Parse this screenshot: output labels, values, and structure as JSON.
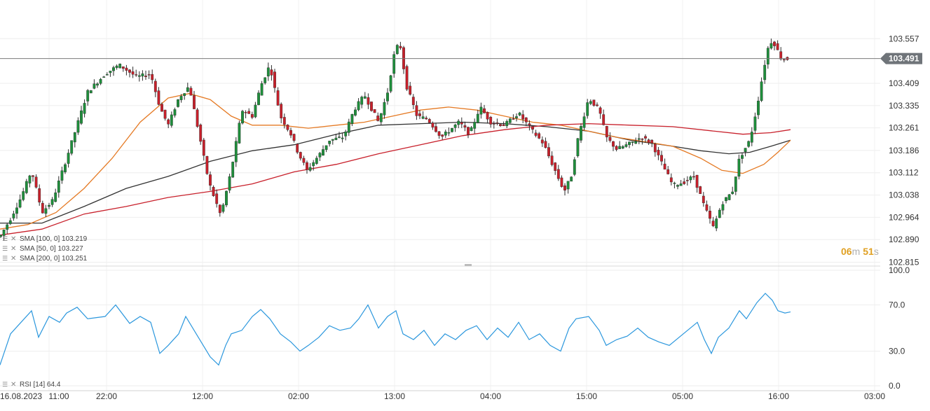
{
  "chart_data": [
    {
      "type": "candlestick",
      "panel": "price",
      "x_ticks": [
        "16.08.2023",
        "11:00",
        "22:00",
        "12:00",
        "02:00",
        "13:00",
        "04:00",
        "15:00",
        "05:00",
        "16:00",
        "03:00"
      ],
      "y_ticks": [
        103.557,
        103.409,
        103.335,
        103.261,
        103.186,
        103.112,
        103.038,
        102.964,
        102.89,
        102.815
      ],
      "ylim": [
        102.815,
        103.6
      ],
      "current_price": "103.491",
      "current_price_value": 103.491,
      "countdown": {
        "minutes": "06",
        "m_unit": "m",
        "seconds": "51",
        "s_unit": "s"
      },
      "grid": true,
      "colors": {
        "up": "#1e8f3b",
        "down": "#c8202b",
        "sma100": "#333333",
        "sma50": "#e57a24",
        "sma200": "#c8202b",
        "price_line": "#7a7a7a",
        "price_tag": "#6f7479"
      },
      "price_path": [
        [
          0,
          102.9
        ],
        [
          15,
          102.96
        ],
        [
          30,
          103.03
        ],
        [
          45,
          103.12
        ],
        [
          60,
          102.98
        ],
        [
          75,
          103.02
        ],
        [
          95,
          103.16
        ],
        [
          110,
          103.27
        ],
        [
          125,
          103.38
        ],
        [
          150,
          103.44
        ],
        [
          170,
          103.47
        ],
        [
          195,
          103.43
        ],
        [
          215,
          103.44
        ],
        [
          228,
          103.33
        ],
        [
          240,
          103.27
        ],
        [
          255,
          103.36
        ],
        [
          270,
          103.4
        ],
        [
          285,
          103.23
        ],
        [
          298,
          103.08
        ],
        [
          315,
          102.97
        ],
        [
          330,
          103.12
        ],
        [
          345,
          103.32
        ],
        [
          360,
          103.3
        ],
        [
          372,
          103.4
        ],
        [
          385,
          103.47
        ],
        [
          400,
          103.3
        ],
        [
          415,
          103.24
        ],
        [
          425,
          103.18
        ],
        [
          438,
          103.12
        ],
        [
          455,
          103.17
        ],
        [
          470,
          103.22
        ],
        [
          490,
          103.23
        ],
        [
          505,
          103.32
        ],
        [
          520,
          103.37
        ],
        [
          540,
          103.28
        ],
        [
          553,
          103.38
        ],
        [
          562,
          103.5
        ],
        [
          570,
          103.55
        ],
        [
          580,
          103.4
        ],
        [
          595,
          103.3
        ],
        [
          610,
          103.29
        ],
        [
          630,
          103.23
        ],
        [
          655,
          103.28
        ],
        [
          670,
          103.24
        ],
        [
          685,
          103.33
        ],
        [
          700,
          103.28
        ],
        [
          720,
          103.27
        ],
        [
          740,
          103.31
        ],
        [
          760,
          103.25
        ],
        [
          775,
          103.21
        ],
        [
          790,
          103.13
        ],
        [
          805,
          103.05
        ],
        [
          815,
          103.1
        ],
        [
          825,
          103.23
        ],
        [
          840,
          103.36
        ],
        [
          855,
          103.32
        ],
        [
          865,
          103.23
        ],
        [
          880,
          103.19
        ],
        [
          900,
          103.21
        ],
        [
          915,
          103.23
        ],
        [
          930,
          103.21
        ],
        [
          945,
          103.14
        ],
        [
          960,
          103.07
        ],
        [
          975,
          103.08
        ],
        [
          990,
          103.1
        ],
        [
          1005,
          103.0
        ],
        [
          1018,
          102.93
        ],
        [
          1030,
          103.01
        ],
        [
          1045,
          103.05
        ],
        [
          1055,
          103.16
        ],
        [
          1070,
          103.22
        ],
        [
          1080,
          103.33
        ],
        [
          1090,
          103.46
        ],
        [
          1098,
          103.55
        ],
        [
          1105,
          103.54
        ],
        [
          1115,
          103.49
        ],
        [
          1128,
          103.49
        ]
      ],
      "series": [
        {
          "name": "SMA",
          "params": "[100, 0]",
          "value": "103.219",
          "points": [
            [
              0,
              102.945
            ],
            [
              60,
              102.945
            ],
            [
              120,
              103.0
            ],
            [
              180,
              103.06
            ],
            [
              240,
              103.1
            ],
            [
              300,
              103.15
            ],
            [
              360,
              103.185
            ],
            [
              420,
              103.205
            ],
            [
              480,
              103.24
            ],
            [
              540,
              103.27
            ],
            [
              600,
              103.275
            ],
            [
              660,
              103.28
            ],
            [
              720,
              103.275
            ],
            [
              780,
              103.265
            ],
            [
              840,
              103.25
            ],
            [
              900,
              103.22
            ],
            [
              960,
              103.2
            ],
            [
              1000,
              103.185
            ],
            [
              1040,
              103.175
            ],
            [
              1070,
              103.18
            ],
            [
              1100,
              103.2
            ],
            [
              1128,
              103.22
            ]
          ]
        },
        {
          "name": "SMA",
          "params": "[50, 0]",
          "value": "103.227",
          "points": [
            [
              0,
              102.925
            ],
            [
              40,
              102.94
            ],
            [
              80,
              102.98
            ],
            [
              120,
              103.06
            ],
            [
              160,
              103.16
            ],
            [
              200,
              103.28
            ],
            [
              240,
              103.36
            ],
            [
              270,
              103.375
            ],
            [
              300,
              103.355
            ],
            [
              330,
              103.3
            ],
            [
              360,
              103.27
            ],
            [
              400,
              103.27
            ],
            [
              440,
              103.26
            ],
            [
              480,
              103.27
            ],
            [
              520,
              103.28
            ],
            [
              560,
              103.3
            ],
            [
              600,
              103.32
            ],
            [
              640,
              103.33
            ],
            [
              680,
              103.32
            ],
            [
              720,
              103.3
            ],
            [
              760,
              103.28
            ],
            [
              800,
              103.27
            ],
            [
              840,
              103.25
            ],
            [
              880,
              103.23
            ],
            [
              920,
              103.215
            ],
            [
              960,
              103.2
            ],
            [
              1000,
              103.16
            ],
            [
              1030,
              103.12
            ],
            [
              1060,
              103.11
            ],
            [
              1090,
              103.14
            ],
            [
              1110,
              103.18
            ],
            [
              1128,
              103.22
            ]
          ]
        },
        {
          "name": "SMA",
          "params": "[200, 0]",
          "value": "103.251",
          "points": [
            [
              0,
              102.905
            ],
            [
              60,
              102.925
            ],
            [
              120,
              102.975
            ],
            [
              180,
              103.0
            ],
            [
              240,
              103.03
            ],
            [
              300,
              103.05
            ],
            [
              360,
              103.075
            ],
            [
              420,
              103.115
            ],
            [
              480,
              103.14
            ],
            [
              540,
              103.175
            ],
            [
              600,
              103.205
            ],
            [
              660,
              103.235
            ],
            [
              720,
              103.255
            ],
            [
              780,
              103.27
            ],
            [
              840,
              103.275
            ],
            [
              900,
              103.27
            ],
            [
              960,
              103.265
            ],
            [
              1020,
              103.25
            ],
            [
              1060,
              103.24
            ],
            [
              1100,
              103.245
            ],
            [
              1128,
              103.255
            ]
          ]
        }
      ]
    },
    {
      "type": "line",
      "panel": "indicator",
      "series": [
        {
          "name": "RSI",
          "params": "[14]",
          "value": "64.4",
          "points": [
            [
              0,
              18
            ],
            [
              15,
              45
            ],
            [
              30,
              55
            ],
            [
              45,
              65
            ],
            [
              55,
              42
            ],
            [
              70,
              60
            ],
            [
              85,
              55
            ],
            [
              95,
              63
            ],
            [
              110,
              68
            ],
            [
              125,
              58
            ],
            [
              150,
              60
            ],
            [
              165,
              70
            ],
            [
              185,
              54
            ],
            [
              200,
              60
            ],
            [
              215,
              55
            ],
            [
              228,
              28
            ],
            [
              240,
              35
            ],
            [
              255,
              45
            ],
            [
              265,
              60
            ],
            [
              280,
              45
            ],
            [
              300,
              25
            ],
            [
              312,
              18
            ],
            [
              322,
              35
            ],
            [
              330,
              45
            ],
            [
              345,
              48
            ],
            [
              360,
              60
            ],
            [
              372,
              66
            ],
            [
              385,
              58
            ],
            [
              400,
              45
            ],
            [
              415,
              38
            ],
            [
              428,
              30
            ],
            [
              440,
              35
            ],
            [
              455,
              42
            ],
            [
              470,
              52
            ],
            [
              485,
              48
            ],
            [
              500,
              50
            ],
            [
              512,
              58
            ],
            [
              525,
              70
            ],
            [
              540,
              50
            ],
            [
              553,
              60
            ],
            [
              565,
              65
            ],
            [
              575,
              45
            ],
            [
              590,
              40
            ],
            [
              605,
              48
            ],
            [
              620,
              35
            ],
            [
              635,
              45
            ],
            [
              650,
              40
            ],
            [
              665,
              48
            ],
            [
              680,
              52
            ],
            [
              695,
              40
            ],
            [
              710,
              50
            ],
            [
              725,
              42
            ],
            [
              740,
              55
            ],
            [
              755,
              40
            ],
            [
              770,
              45
            ],
            [
              785,
              35
            ],
            [
              800,
              30
            ],
            [
              812,
              50
            ],
            [
              822,
              58
            ],
            [
              840,
              60
            ],
            [
              855,
              48
            ],
            [
              865,
              35
            ],
            [
              880,
              40
            ],
            [
              895,
              43
            ],
            [
              910,
              50
            ],
            [
              925,
              42
            ],
            [
              940,
              38
            ],
            [
              955,
              35
            ],
            [
              975,
              45
            ],
            [
              995,
              55
            ],
            [
              1005,
              40
            ],
            [
              1015,
              28
            ],
            [
              1025,
              42
            ],
            [
              1040,
              50
            ],
            [
              1055,
              65
            ],
            [
              1065,
              58
            ],
            [
              1080,
              72
            ],
            [
              1092,
              80
            ],
            [
              1102,
              74
            ],
            [
              1110,
              65
            ],
            [
              1120,
              63
            ],
            [
              1128,
              64
            ]
          ]
        }
      ],
      "y_ticks": [
        "100.0",
        "70.0",
        "30.0",
        "0.0"
      ],
      "y_tick_values": [
        100,
        70,
        30,
        0
      ],
      "ylim": [
        0,
        100
      ],
      "colors": {
        "rsi": "#2b97dd"
      }
    }
  ]
}
